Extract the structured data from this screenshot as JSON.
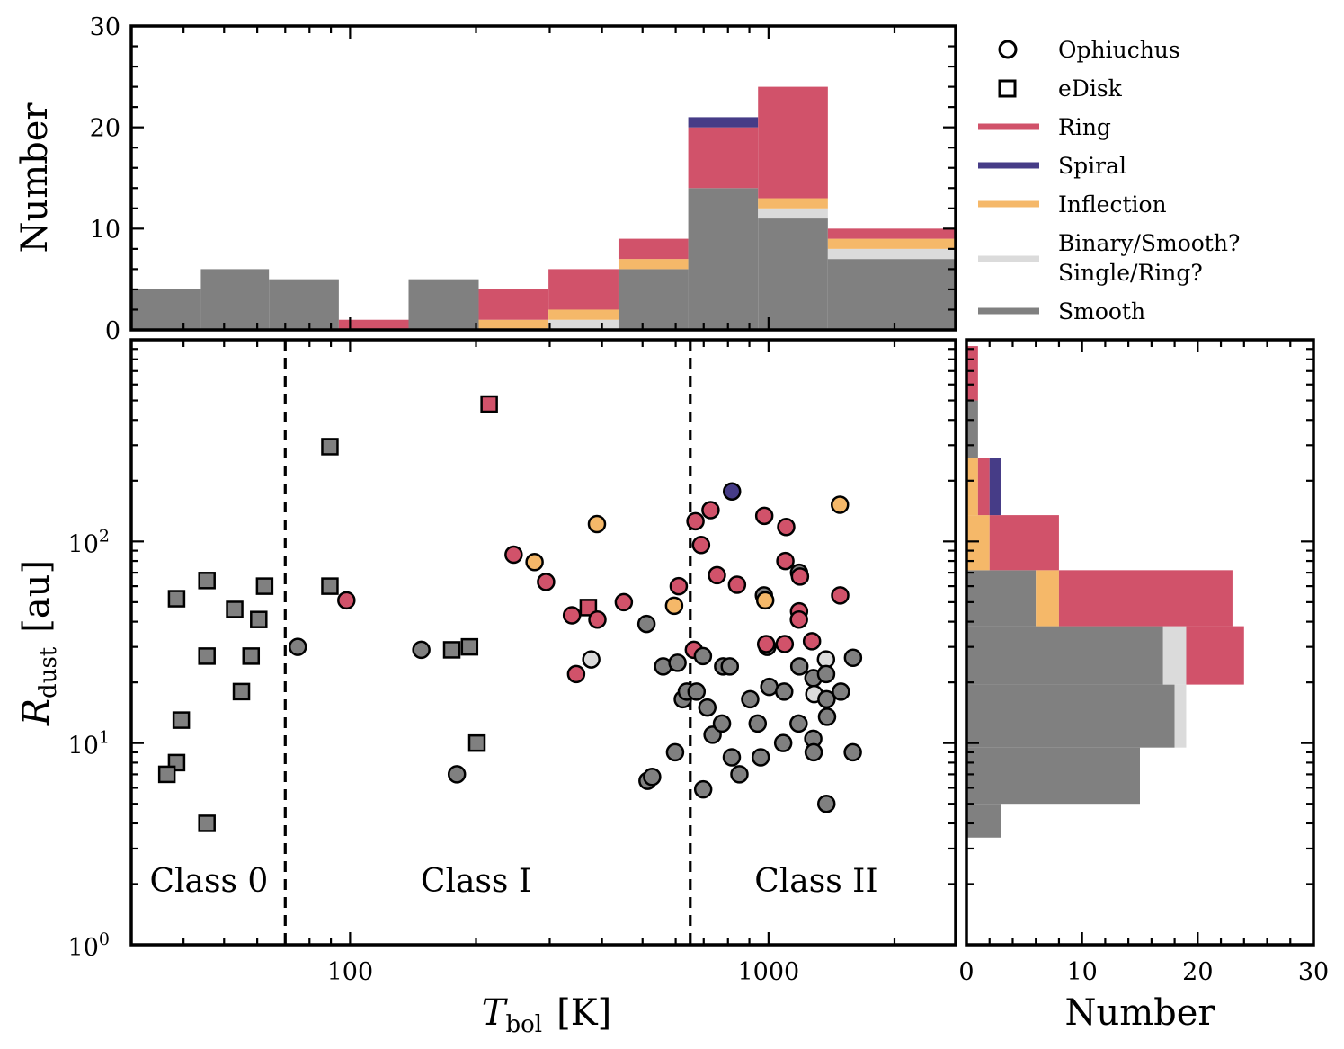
{
  "colors": {
    "Ring": "#d1526a",
    "Spiral": "#463c87",
    "Inflection": "#f5b869",
    "Binary": "#dbdbdb",
    "Smooth": "#808080"
  },
  "chart_data": [
    {
      "type": "histogram-stacked",
      "panel": "top",
      "ylabel": "Number",
      "ylim": [
        0,
        30
      ],
      "yticks": [
        0,
        10,
        20,
        30
      ],
      "xlim": [
        30,
        2800
      ],
      "xscale": "log",
      "bins": [
        {
          "x0": 30,
          "x1": 44,
          "counts": {
            "Smooth": 4
          }
        },
        {
          "x0": 44,
          "x1": 64,
          "counts": {
            "Smooth": 6
          }
        },
        {
          "x0": 64,
          "x1": 94,
          "counts": {
            "Smooth": 5
          }
        },
        {
          "x0": 94,
          "x1": 138,
          "counts": {
            "Ring": 1
          }
        },
        {
          "x0": 138,
          "x1": 203,
          "counts": {
            "Smooth": 5
          }
        },
        {
          "x0": 203,
          "x1": 298,
          "counts": {
            "Inflection": 1,
            "Ring": 3
          }
        },
        {
          "x0": 298,
          "x1": 438,
          "counts": {
            "Binary": 1,
            "Inflection": 1,
            "Ring": 4
          }
        },
        {
          "x0": 438,
          "x1": 643,
          "counts": {
            "Smooth": 6,
            "Inflection": 1,
            "Ring": 2
          }
        },
        {
          "x0": 643,
          "x1": 944,
          "counts": {
            "Smooth": 14,
            "Ring": 6,
            "Spiral": 1
          }
        },
        {
          "x0": 944,
          "x1": 1386,
          "counts": {
            "Smooth": 11,
            "Binary": 1,
            "Inflection": 1,
            "Ring": 11
          }
        },
        {
          "x0": 1386,
          "x1": 2800,
          "counts": {
            "Smooth": 7,
            "Binary": 1,
            "Inflection": 1,
            "Ring": 1
          }
        }
      ]
    },
    {
      "type": "scatter",
      "panel": "main",
      "xlabel": "T_bol [K]",
      "ylabel": "R_dust [au]",
      "xscale": "log",
      "yscale": "log",
      "xlim": [
        30,
        2800
      ],
      "ylim": [
        1,
        1000
      ],
      "xticks": [
        100,
        1000
      ],
      "yticks": [
        1,
        10,
        100
      ],
      "class_boundaries": [
        70,
        650
      ],
      "class_labels": [
        "Class 0",
        "Class I",
        "Class II"
      ],
      "points": [
        {
          "x": 38.5,
          "y": 52,
          "m": "s",
          "c": "Smooth"
        },
        {
          "x": 45.5,
          "y": 64,
          "m": "s",
          "c": "Smooth"
        },
        {
          "x": 53,
          "y": 46,
          "m": "s",
          "c": "Smooth"
        },
        {
          "x": 62.5,
          "y": 60,
          "m": "s",
          "c": "Smooth"
        },
        {
          "x": 60.5,
          "y": 41,
          "m": "s",
          "c": "Smooth"
        },
        {
          "x": 45.5,
          "y": 27,
          "m": "s",
          "c": "Smooth"
        },
        {
          "x": 58,
          "y": 27,
          "m": "s",
          "c": "Smooth"
        },
        {
          "x": 55,
          "y": 18,
          "m": "s",
          "c": "Smooth"
        },
        {
          "x": 39.5,
          "y": 13,
          "m": "s",
          "c": "Smooth"
        },
        {
          "x": 38.5,
          "y": 8,
          "m": "s",
          "c": "Smooth"
        },
        {
          "x": 36.5,
          "y": 7,
          "m": "s",
          "c": "Smooth"
        },
        {
          "x": 45.5,
          "y": 4,
          "m": "s",
          "c": "Smooth"
        },
        {
          "x": 89.5,
          "y": 295,
          "m": "s",
          "c": "Smooth"
        },
        {
          "x": 89.5,
          "y": 60,
          "m": "s",
          "c": "Smooth"
        },
        {
          "x": 175,
          "y": 29,
          "m": "s",
          "c": "Smooth"
        },
        {
          "x": 193,
          "y": 30,
          "m": "s",
          "c": "Smooth"
        },
        {
          "x": 201,
          "y": 10,
          "m": "s",
          "c": "Smooth"
        },
        {
          "x": 215,
          "y": 480,
          "m": "s",
          "c": "Ring"
        },
        {
          "x": 371,
          "y": 47,
          "m": "s",
          "c": "Ring"
        },
        {
          "x": 75,
          "y": 30,
          "m": "o",
          "c": "Smooth"
        },
        {
          "x": 98,
          "y": 51,
          "m": "o",
          "c": "Ring"
        },
        {
          "x": 148,
          "y": 29,
          "m": "o",
          "c": "Smooth"
        },
        {
          "x": 180,
          "y": 7,
          "m": "o",
          "c": "Smooth"
        },
        {
          "x": 246,
          "y": 86,
          "m": "o",
          "c": "Ring"
        },
        {
          "x": 276,
          "y": 79,
          "m": "o",
          "c": "Inflection"
        },
        {
          "x": 294,
          "y": 63,
          "m": "o",
          "c": "Ring"
        },
        {
          "x": 339,
          "y": 43,
          "m": "o",
          "c": "Ring"
        },
        {
          "x": 347,
          "y": 22,
          "m": "o",
          "c": "Ring"
        },
        {
          "x": 390,
          "y": 41,
          "m": "o",
          "c": "Ring"
        },
        {
          "x": 377,
          "y": 26,
          "m": "o",
          "c": "Binary"
        },
        {
          "x": 389,
          "y": 122,
          "m": "o",
          "c": "Inflection"
        },
        {
          "x": 451,
          "y": 50,
          "m": "o",
          "c": "Ring"
        },
        {
          "x": 511,
          "y": 39,
          "m": "o",
          "c": "Smooth"
        },
        {
          "x": 514,
          "y": 6.5,
          "m": "o",
          "c": "Smooth"
        },
        {
          "x": 527,
          "y": 6.8,
          "m": "o",
          "c": "Smooth"
        },
        {
          "x": 560,
          "y": 24,
          "m": "o",
          "c": "Smooth"
        },
        {
          "x": 595,
          "y": 48,
          "m": "o",
          "c": "Inflection"
        },
        {
          "x": 610,
          "y": 60,
          "m": "o",
          "c": "Ring"
        },
        {
          "x": 606,
          "y": 25,
          "m": "o",
          "c": "Smooth"
        },
        {
          "x": 598,
          "y": 9,
          "m": "o",
          "c": "Smooth"
        },
        {
          "x": 624,
          "y": 16.5,
          "m": "o",
          "c": "Smooth"
        },
        {
          "x": 638,
          "y": 18,
          "m": "o",
          "c": "Smooth"
        },
        {
          "x": 663,
          "y": 29,
          "m": "o",
          "c": "Ring"
        },
        {
          "x": 673,
          "y": 18,
          "m": "o",
          "c": "Smooth"
        },
        {
          "x": 669,
          "y": 126,
          "m": "o",
          "c": "Ring"
        },
        {
          "x": 690,
          "y": 96,
          "m": "o",
          "c": "Ring"
        },
        {
          "x": 697,
          "y": 27,
          "m": "o",
          "c": "Smooth"
        },
        {
          "x": 714,
          "y": 15,
          "m": "o",
          "c": "Smooth"
        },
        {
          "x": 727,
          "y": 143,
          "m": "o",
          "c": "Ring"
        },
        {
          "x": 735,
          "y": 11,
          "m": "o",
          "c": "Smooth"
        },
        {
          "x": 753,
          "y": 68,
          "m": "o",
          "c": "Ring"
        },
        {
          "x": 774,
          "y": 12.5,
          "m": "o",
          "c": "Smooth"
        },
        {
          "x": 779,
          "y": 24,
          "m": "o",
          "c": "Smooth"
        },
        {
          "x": 818,
          "y": 177,
          "m": "o",
          "c": "Spiral"
        },
        {
          "x": 808,
          "y": 24,
          "m": "o",
          "c": "Smooth"
        },
        {
          "x": 817,
          "y": 8.5,
          "m": "o",
          "c": "Smooth"
        },
        {
          "x": 841,
          "y": 61,
          "m": "o",
          "c": "Ring"
        },
        {
          "x": 852,
          "y": 7,
          "m": "o",
          "c": "Smooth"
        },
        {
          "x": 698,
          "y": 5.9,
          "m": "o",
          "c": "Smooth"
        },
        {
          "x": 904,
          "y": 16.5,
          "m": "o",
          "c": "Smooth"
        },
        {
          "x": 942,
          "y": 12.5,
          "m": "o",
          "c": "Smooth"
        },
        {
          "x": 958,
          "y": 8.5,
          "m": "o",
          "c": "Smooth"
        },
        {
          "x": 977,
          "y": 134,
          "m": "o",
          "c": "Ring"
        },
        {
          "x": 975,
          "y": 54,
          "m": "o",
          "c": "Smooth"
        },
        {
          "x": 982,
          "y": 51,
          "m": "o",
          "c": "Inflection"
        },
        {
          "x": 993,
          "y": 30,
          "m": "o",
          "c": "Smooth"
        },
        {
          "x": 987,
          "y": 31,
          "m": "o",
          "c": "Ring"
        },
        {
          "x": 1004,
          "y": 19,
          "m": "o",
          "c": "Smooth"
        },
        {
          "x": 1102,
          "y": 118,
          "m": "o",
          "c": "Ring"
        },
        {
          "x": 1097,
          "y": 80,
          "m": "o",
          "c": "Ring"
        },
        {
          "x": 1093,
          "y": 31,
          "m": "o",
          "c": "Ring"
        },
        {
          "x": 1090,
          "y": 18,
          "m": "o",
          "c": "Smooth"
        },
        {
          "x": 1084,
          "y": 10,
          "m": "o",
          "c": "Smooth"
        },
        {
          "x": 1183,
          "y": 70,
          "m": "o",
          "c": "Smooth"
        },
        {
          "x": 1189,
          "y": 67,
          "m": "o",
          "c": "Ring"
        },
        {
          "x": 1183,
          "y": 45,
          "m": "o",
          "c": "Ring"
        },
        {
          "x": 1182,
          "y": 41,
          "m": "o",
          "c": "Ring"
        },
        {
          "x": 1185,
          "y": 24,
          "m": "o",
          "c": "Smooth"
        },
        {
          "x": 1180,
          "y": 12.5,
          "m": "o",
          "c": "Smooth"
        },
        {
          "x": 1270,
          "y": 32,
          "m": "o",
          "c": "Ring"
        },
        {
          "x": 1280,
          "y": 21,
          "m": "o",
          "c": "Smooth"
        },
        {
          "x": 1286,
          "y": 17.5,
          "m": "o",
          "c": "Binary"
        },
        {
          "x": 1279,
          "y": 10.5,
          "m": "o",
          "c": "Smooth"
        },
        {
          "x": 1282,
          "y": 9,
          "m": "o",
          "c": "Smooth"
        },
        {
          "x": 1372,
          "y": 26,
          "m": "o",
          "c": "Binary"
        },
        {
          "x": 1373,
          "y": 22,
          "m": "o",
          "c": "Smooth"
        },
        {
          "x": 1376,
          "y": 16.5,
          "m": "o",
          "c": "Smooth"
        },
        {
          "x": 1380,
          "y": 13.5,
          "m": "o",
          "c": "Smooth"
        },
        {
          "x": 1375,
          "y": 5,
          "m": "o",
          "c": "Smooth"
        },
        {
          "x": 1481,
          "y": 152,
          "m": "o",
          "c": "Inflection"
        },
        {
          "x": 1483,
          "y": 54,
          "m": "o",
          "c": "Ring"
        },
        {
          "x": 1489,
          "y": 18,
          "m": "o",
          "c": "Smooth"
        },
        {
          "x": 1592,
          "y": 26.5,
          "m": "o",
          "c": "Smooth"
        },
        {
          "x": 1590,
          "y": 9,
          "m": "o",
          "c": "Smooth"
        }
      ]
    },
    {
      "type": "histogram-stacked-horizontal",
      "panel": "right",
      "xlabel": "Number",
      "xlim": [
        0,
        30
      ],
      "xticks": [
        0,
        10,
        20,
        30
      ],
      "yscale": "log",
      "ylim": [
        1,
        1000
      ],
      "bins": [
        {
          "y0": 3.4,
          "y1": 5.0,
          "counts": {
            "Smooth": 3
          }
        },
        {
          "y0": 5.0,
          "y1": 9.5,
          "counts": {
            "Smooth": 15
          }
        },
        {
          "y0": 9.5,
          "y1": 19.5,
          "counts": {
            "Smooth": 18,
            "Binary": 1
          }
        },
        {
          "y0": 19.5,
          "y1": 38,
          "counts": {
            "Smooth": 17,
            "Binary": 2,
            "Ring": 5
          }
        },
        {
          "y0": 38,
          "y1": 72,
          "counts": {
            "Smooth": 6,
            "Inflection": 2,
            "Ring": 15
          }
        },
        {
          "y0": 72,
          "y1": 135,
          "counts": {
            "Inflection": 2,
            "Ring": 6
          }
        },
        {
          "y0": 135,
          "y1": 260,
          "counts": {
            "Inflection": 1,
            "Ring": 1,
            "Spiral": 1
          }
        },
        {
          "y0": 260,
          "y1": 500,
          "counts": {
            "Smooth": 1
          }
        },
        {
          "y0": 500,
          "y1": 930,
          "counts": {
            "Ring": 1
          }
        }
      ]
    }
  ],
  "legend": [
    {
      "label": "Ophiuchus",
      "kind": "circle"
    },
    {
      "label": "eDisk",
      "kind": "square"
    },
    {
      "label": "Ring",
      "kind": "line",
      "color": "Ring"
    },
    {
      "label": "Spiral",
      "kind": "line",
      "color": "Spiral"
    },
    {
      "label": "Inflection",
      "kind": "line",
      "color": "Inflection"
    },
    {
      "label": "Binary/Smooth?",
      "label2": "Single/Ring?",
      "kind": "line",
      "color": "Binary"
    },
    {
      "label": "Smooth",
      "kind": "line",
      "color": "Smooth"
    }
  ],
  "labels": {
    "top_ylabel": "Number",
    "right_xlabel": "Number",
    "main_xlabel_sym": "T",
    "main_xlabel_sub": "bol",
    "main_xlabel_unit": "[K]",
    "main_ylabel_sym": "R",
    "main_ylabel_sub": "dust",
    "main_ylabel_unit": "[au]",
    "xtick_100": "100",
    "xtick_1000": "1000",
    "ytick_base": "10",
    "ytick_exp_0": "0",
    "ytick_exp_1": "1",
    "ytick_exp_2": "2",
    "top_yticks": [
      "0",
      "10",
      "20",
      "30"
    ],
    "right_xticks": [
      "0",
      "10",
      "20",
      "30"
    ]
  }
}
